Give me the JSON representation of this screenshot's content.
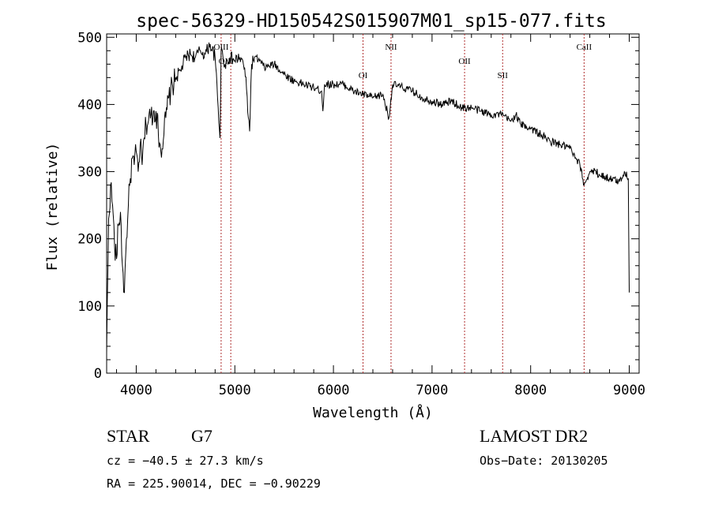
{
  "title": "spec-56329-HD150542S015907M01_sp15-077.fits",
  "footer": {
    "object_class": "STAR",
    "subclass": "G7",
    "survey": "LAMOST DR2",
    "cz_line": "cz = −40.5 ± 27.3 km/s",
    "obs_date_line": "Obs−Date: 20130205",
    "coords_line": "RA = 225.90014, DEC =  −0.90229"
  },
  "chart_data": {
    "type": "line",
    "title": "spec-56329-HD150542S015907M01_sp15-077.fits",
    "xlabel": "Wavelength (Å)",
    "ylabel": "Flux (relative)",
    "xlim": [
      3700,
      9100
    ],
    "ylim": [
      0,
      505
    ],
    "xticks": [
      4000,
      5000,
      6000,
      7000,
      8000,
      9000
    ],
    "yticks": [
      0,
      100,
      200,
      300,
      400,
      500
    ],
    "grid": false,
    "line_color": "#000000",
    "marker_color": "#b03030",
    "spectral_lines": [
      {
        "label": "OIII",
        "wavelength": 4861
      },
      {
        "label": "OIII",
        "wavelength": 4959
      },
      {
        "label": "OI",
        "wavelength": 6300
      },
      {
        "label": "NII",
        "wavelength": 6584
      },
      {
        "label": "OII",
        "wavelength": 7330
      },
      {
        "label": "SII",
        "wavelength": 7716
      },
      {
        "label": "CaII",
        "wavelength": 8542
      }
    ],
    "series": [
      {
        "x": [
          3700,
          3720,
          3740,
          3760,
          3780,
          3800,
          3820,
          3840,
          3860,
          3880,
          3900,
          3920,
          3940,
          3960,
          3980,
          4000,
          4020,
          4040,
          4060,
          4080,
          4100,
          4150,
          4200,
          4250,
          4300,
          4330,
          4350,
          4400,
          4450,
          4500,
          4550,
          4600,
          4650,
          4700,
          4750,
          4800,
          4850,
          4861,
          4880,
          4900,
          4950,
          5000,
          5050,
          5100,
          5150,
          5170,
          5200,
          5250,
          5300,
          5400,
          5500,
          5600,
          5700,
          5800,
          5880,
          5893,
          5910,
          6000,
          6100,
          6200,
          6300,
          6400,
          6500,
          6563,
          6600,
          6700,
          6800,
          6900,
          7000,
          7100,
          7200,
          7300,
          7400,
          7500,
          7600,
          7700,
          7800,
          7850,
          7900,
          8000,
          8100,
          8200,
          8300,
          8400,
          8450,
          8500,
          8542,
          8600,
          8662,
          8700,
          8800,
          8900,
          8950,
          8990,
          9000
        ],
        "y": [
          30,
          230,
          280,
          250,
          190,
          170,
          220,
          240,
          160,
          120,
          200,
          250,
          290,
          320,
          310,
          330,
          300,
          340,
          310,
          350,
          370,
          385,
          390,
          330,
          380,
          410,
          420,
          440,
          450,
          470,
          475,
          470,
          480,
          475,
          490,
          470,
          350,
          480,
          470,
          460,
          470,
          465,
          470,
          455,
          360,
          460,
          470,
          465,
          455,
          460,
          445,
          435,
          430,
          425,
          420,
          390,
          430,
          430,
          430,
          420,
          415,
          410,
          415,
          380,
          430,
          425,
          420,
          410,
          405,
          400,
          405,
          395,
          395,
          390,
          385,
          385,
          375,
          385,
          370,
          365,
          355,
          345,
          340,
          335,
          320,
          310,
          280,
          300,
          300,
          295,
          290,
          285,
          300,
          290,
          120
        ]
      }
    ]
  }
}
